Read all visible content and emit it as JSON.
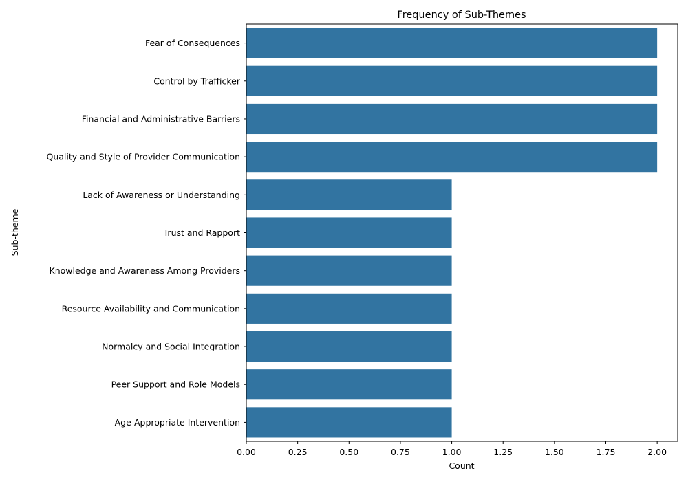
{
  "chart_data": {
    "type": "bar",
    "orientation": "horizontal",
    "title": "Frequency of Sub-Themes",
    "xlabel": "Count",
    "ylabel": "Sub-theme",
    "categories": [
      "Fear of Consequences",
      "Control by Trafficker",
      "Financial and Administrative Barriers",
      "Quality and Style of Provider Communication",
      "Lack of Awareness or Understanding",
      "Trust and Rapport",
      "Knowledge and Awareness Among Providers",
      "Resource Availability and Communication",
      "Normalcy and Social Integration",
      "Peer Support and Role Models",
      "Age-Appropriate Intervention"
    ],
    "values": [
      2,
      2,
      2,
      2,
      1,
      1,
      1,
      1,
      1,
      1,
      1
    ],
    "xlim": [
      0,
      2.1
    ],
    "xticks": [
      0.0,
      0.25,
      0.5,
      0.75,
      1.0,
      1.25,
      1.5,
      1.75,
      2.0
    ],
    "xtick_labels": [
      "0.00",
      "0.25",
      "0.50",
      "0.75",
      "1.00",
      "1.25",
      "1.50",
      "1.75",
      "2.00"
    ],
    "grid": false,
    "legend": "none",
    "colors": {
      "bar": "#3274a1",
      "axis": "#000000",
      "background": "#ffffff"
    }
  }
}
